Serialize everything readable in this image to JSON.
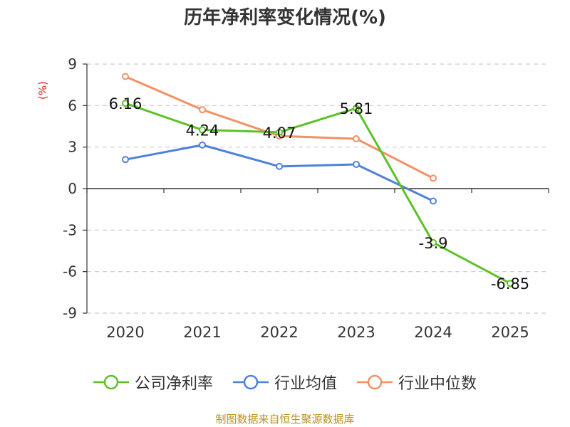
{
  "title": "历年净利率变化情况(%)",
  "source": "制图数据来自恒生聚源数据库",
  "chart_data": {
    "type": "line",
    "title": "历年净利率变化情况(%)",
    "ylabel": "(%)",
    "xlabel": "",
    "categories": [
      "2020",
      "2021",
      "2022",
      "2023",
      "2024",
      "2025"
    ],
    "ylim": [
      -9,
      9
    ],
    "yticks": [
      9,
      6,
      3,
      0,
      -3,
      -6,
      -9
    ],
    "grid": true,
    "legend": "bottom",
    "series": [
      {
        "name": "公司净利率",
        "color": "#5cc225",
        "values": [
          6.16,
          4.24,
          4.07,
          5.81,
          -3.9,
          -6.85
        ],
        "labels": [
          "6.16",
          "4.24",
          "4.07",
          "5.81",
          "-3.9",
          "-6.85"
        ]
      },
      {
        "name": "行业均值",
        "color": "#4f81d9",
        "values": [
          2.1,
          3.15,
          1.6,
          1.75,
          -0.9,
          null
        ]
      },
      {
        "name": "行业中位数",
        "color": "#f59063",
        "values": [
          8.1,
          5.7,
          3.8,
          3.6,
          0.75,
          null
        ]
      }
    ]
  }
}
